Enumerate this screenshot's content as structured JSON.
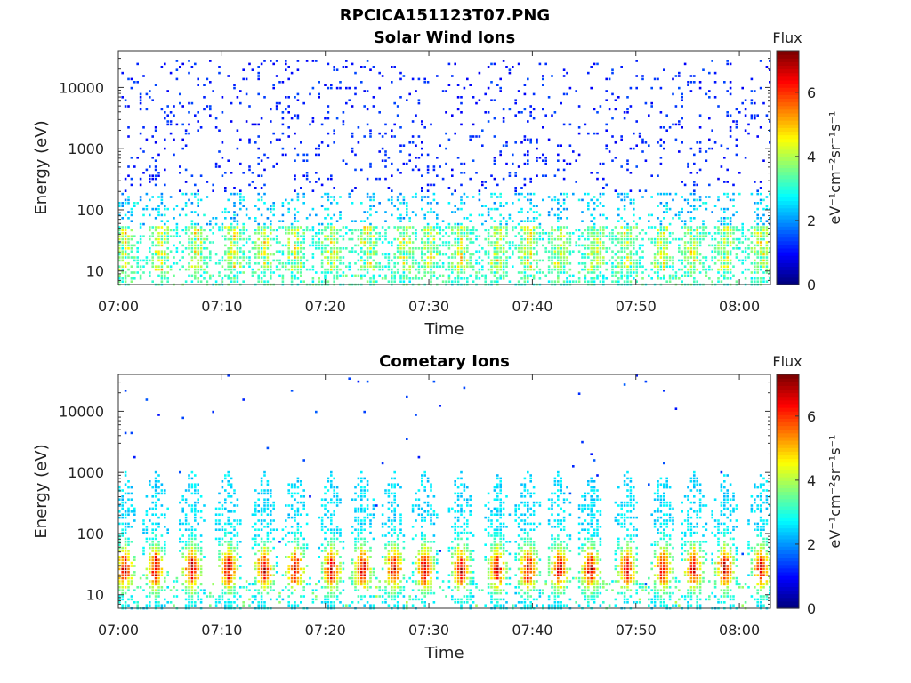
{
  "figure_title": "RPCICA151123T07.PNG",
  "chart_data": [
    {
      "type": "heatmap",
      "title": "Solar Wind Ions",
      "xlabel": "Time",
      "ylabel": "Energy (eV)",
      "x_ticks": [
        "07:00",
        "07:10",
        "07:20",
        "07:30",
        "07:40",
        "07:50",
        "08:00"
      ],
      "x_range_minutes": [
        0,
        63
      ],
      "y_ticks": [
        "10",
        "100",
        "1000",
        "10000"
      ],
      "y_scale": "log",
      "ylim": [
        6,
        40000
      ],
      "colorbar": {
        "label_top": "Flux",
        "label": "eV⁻¹cm⁻²sr⁻¹s⁻¹",
        "ticks": [
          "0",
          "2",
          "4",
          "6"
        ],
        "range": [
          0,
          7.3
        ],
        "colormap": "jet"
      },
      "pattern": "sparse low-flux points (value ~1) spread over 40 eV–30 keV, with a band of higher flux (values 3–5) at 10–60 eV",
      "band_peaks_minutes": [
        0.5,
        4,
        7.5,
        11,
        14,
        17,
        20.5,
        24,
        27.5,
        30,
        33,
        36.5,
        39.5,
        42.5,
        46,
        49,
        52.5,
        55.5,
        58.5,
        62
      ]
    },
    {
      "type": "heatmap",
      "title": "Cometary Ions",
      "xlabel": "Time",
      "ylabel": "Energy (eV)",
      "x_ticks": [
        "07:00",
        "07:10",
        "07:20",
        "07:30",
        "07:40",
        "07:50",
        "08:00"
      ],
      "x_range_minutes": [
        0,
        63
      ],
      "y_ticks": [
        "10",
        "100",
        "1000",
        "10000"
      ],
      "y_scale": "log",
      "ylim": [
        6,
        40000
      ],
      "colorbar": {
        "label_top": "Flux",
        "label": "eV⁻¹cm⁻²sr⁻¹s⁻¹",
        "ticks": [
          "0",
          "2",
          "4",
          "6"
        ],
        "range": [
          0,
          7.3
        ],
        "colormap": "jet"
      },
      "pattern": "periodic vertical bursts from 6 eV up to 300–1500 eV, peak flux (values 6–7) at 20–50 eV",
      "band_peaks_minutes": [
        0.5,
        3.5,
        7,
        10.5,
        14,
        17,
        20.5,
        23.5,
        26.5,
        29.5,
        33,
        36.5,
        39.5,
        42.5,
        45.5,
        49,
        52.5,
        55.5,
        58.5,
        62
      ]
    }
  ]
}
